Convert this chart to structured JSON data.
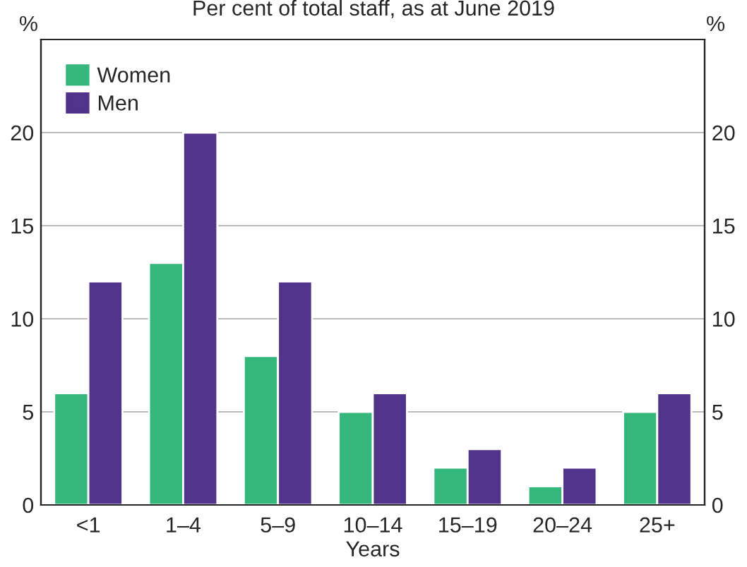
{
  "chart_data": {
    "type": "bar",
    "subtitle": "Per cent of total staff, as at June 2019",
    "xlabel": "Years",
    "ylabel": "%",
    "y2label": "%",
    "categories": [
      "<1",
      "1–4",
      "5–9",
      "10–14",
      "15–19",
      "20–24",
      "25+"
    ],
    "series": [
      {
        "name": "Women",
        "color": "#34b77b",
        "values": [
          6,
          13,
          8,
          5,
          2,
          1,
          5
        ]
      },
      {
        "name": "Men",
        "color": "#51338b",
        "values": [
          12,
          20,
          12,
          6,
          3,
          2,
          6
        ]
      }
    ],
    "ylim": [
      0,
      25
    ],
    "yticks": [
      0,
      5,
      10,
      15,
      20
    ],
    "y2lim": [
      0,
      25
    ],
    "y2ticks": [
      0,
      5,
      10,
      15,
      20
    ],
    "grid": "y",
    "legend": "top left"
  }
}
